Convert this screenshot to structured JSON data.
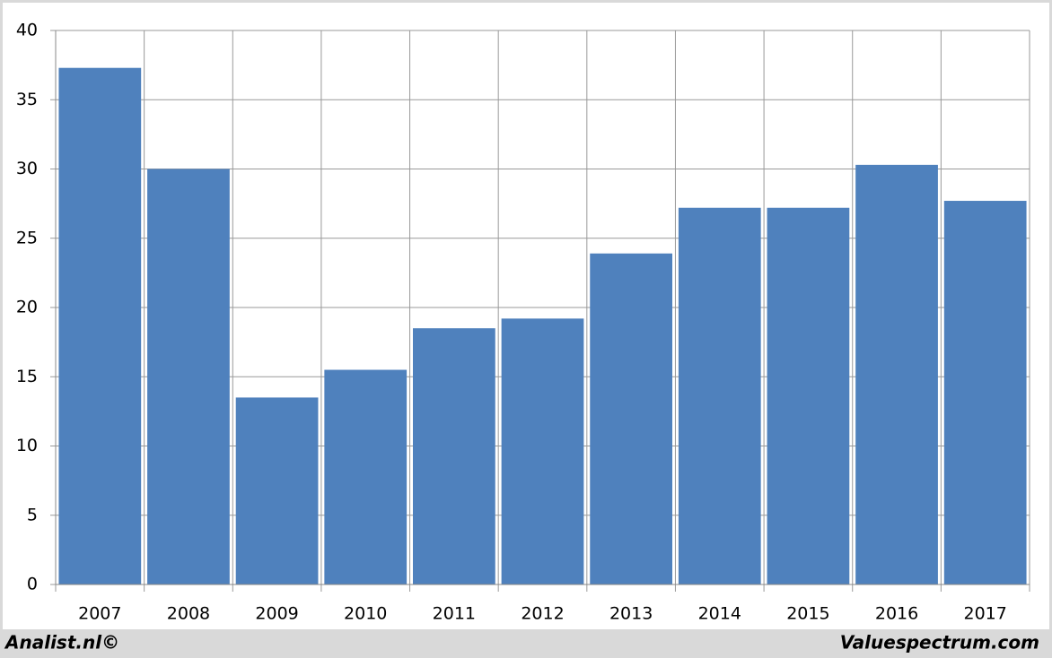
{
  "chart_data": {
    "type": "bar",
    "categories": [
      "2007",
      "2008",
      "2009",
      "2010",
      "2011",
      "2012",
      "2013",
      "2014",
      "2015",
      "2016",
      "2017"
    ],
    "values": [
      37.3,
      30.0,
      13.5,
      15.5,
      18.5,
      19.2,
      23.9,
      27.2,
      27.2,
      30.3,
      27.7
    ],
    "color": "#4f81bd",
    "ylim": [
      0,
      40
    ],
    "yticks": [
      0,
      5,
      10,
      15,
      20,
      25,
      30,
      35,
      40
    ],
    "grid": true
  },
  "footer": {
    "left": "Analist.nl©",
    "right": "Valuespectrum.com"
  }
}
